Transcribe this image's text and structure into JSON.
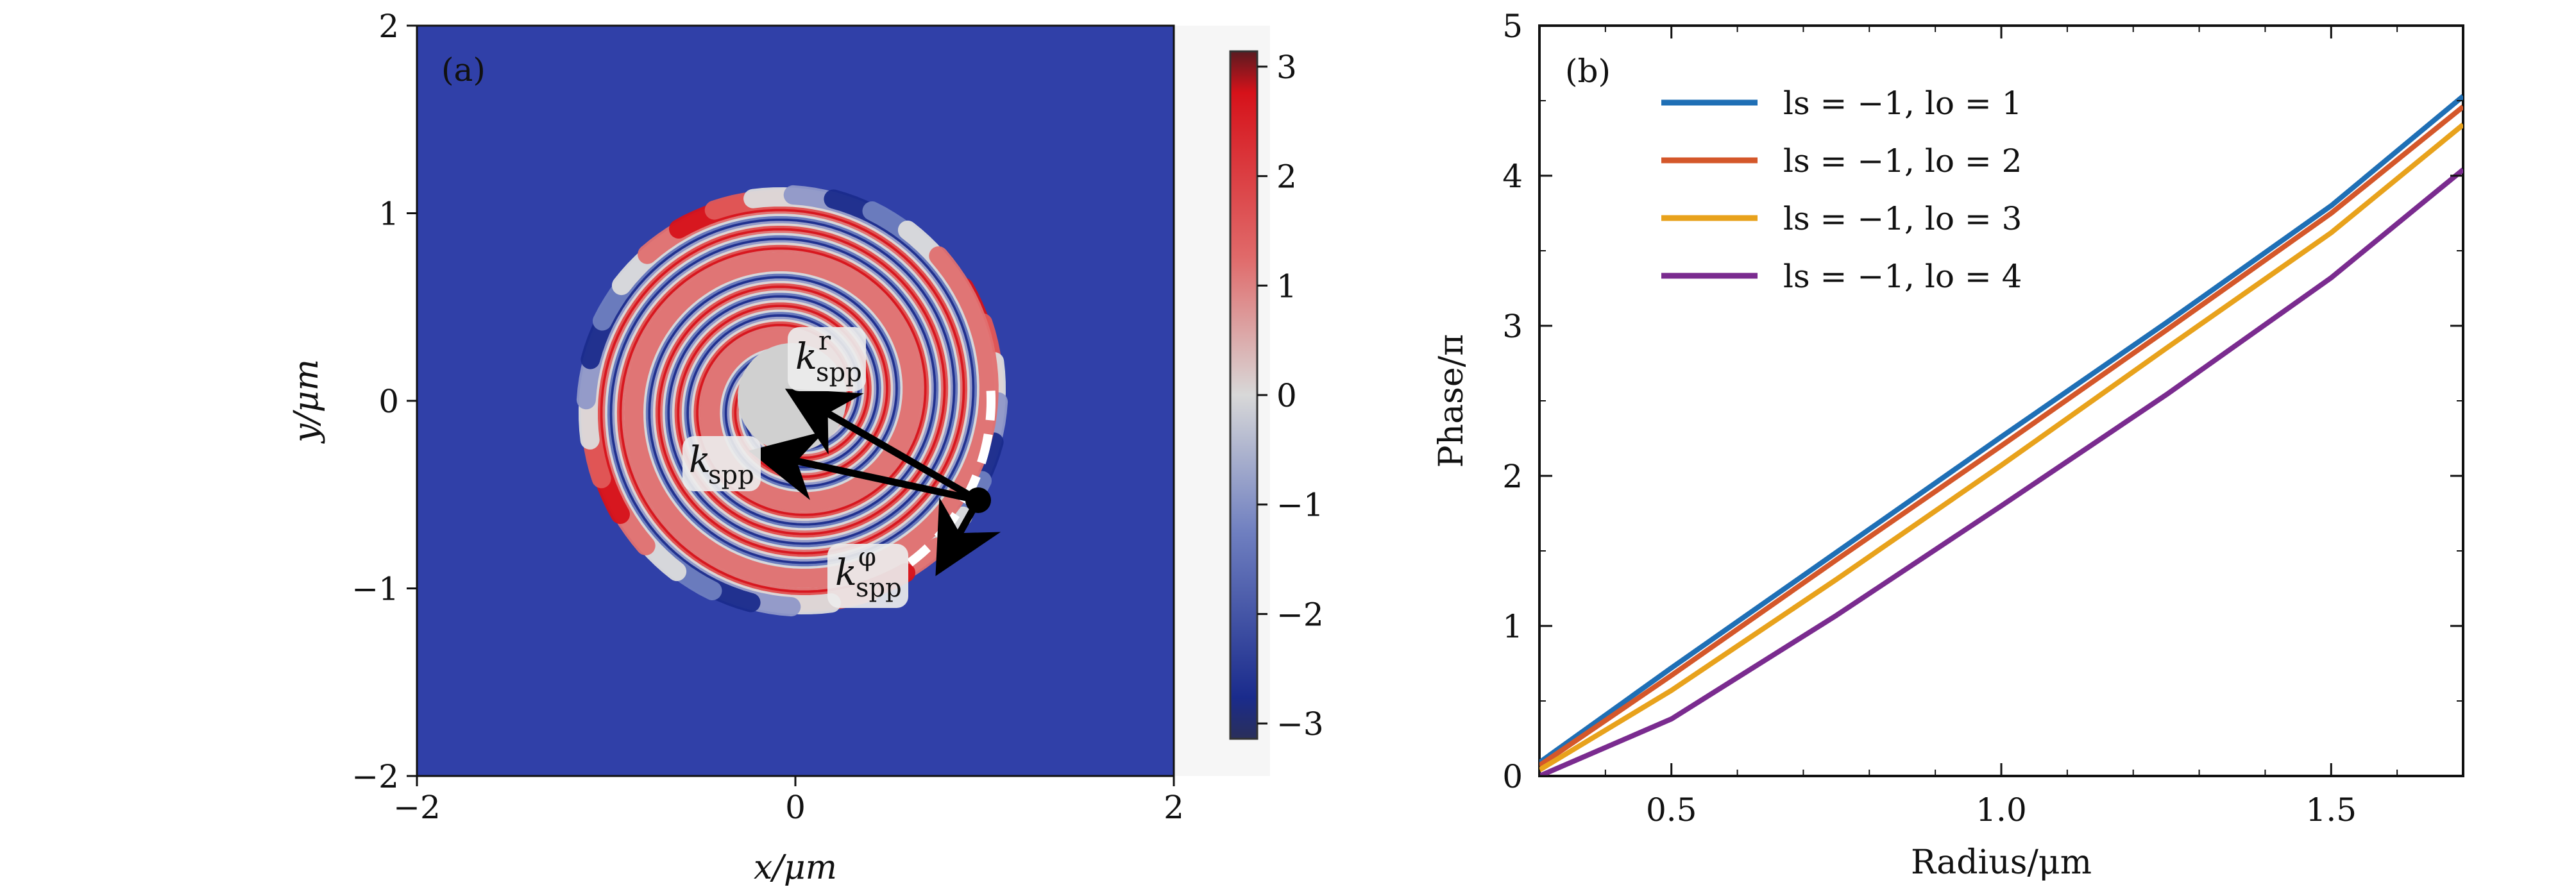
{
  "figure": {
    "panels": {
      "a": {
        "label": "(a)",
        "xlabel": "x/μm",
        "ylabel": "y/μm",
        "xticks": [
          "−2",
          "0",
          "2"
        ],
        "yticks": [
          "2",
          "1",
          "0",
          "−1",
          "−2"
        ],
        "colorbar_ticks": [
          "3",
          "2",
          "1",
          "0",
          "−1",
          "−2",
          "−3"
        ],
        "annotations": {
          "k_r": {
            "base": "k",
            "sub": "spp",
            "sup": "r"
          },
          "k_spp": {
            "base": "k",
            "sub": "spp"
          },
          "k_phi": {
            "base": "k",
            "sub": "spp",
            "sup": "φ"
          }
        }
      },
      "b": {
        "label": "(b)",
        "xlabel": "Radius/μm",
        "ylabel": "Phase/π",
        "xticks": [
          "0.5",
          "1.0",
          "1.5"
        ],
        "yticks": [
          "5",
          "4",
          "3",
          "2",
          "1",
          "0"
        ]
      }
    }
  },
  "chart_data": [
    {
      "type": "heatmap",
      "title": "(a)",
      "xlabel": "x/μm",
      "ylabel": "y/μm",
      "xlim": [
        -2,
        2
      ],
      "ylim": [
        -2,
        2
      ],
      "colorbar": {
        "min": -3.14,
        "max": 3.14,
        "ticks": [
          3,
          2,
          1,
          0,
          -1,
          -2,
          -3
        ],
        "colors": [
          "#1a2b8c",
          "#dcdcdc",
          "#d6121a"
        ]
      },
      "description_values": {
        "pattern": "spiral phase",
        "arms": 4,
        "point": [
          1.0,
          -0.55
        ]
      }
    },
    {
      "type": "line",
      "title": "(b)",
      "xlabel": "Radius/μm",
      "ylabel": "Phase/π",
      "xlim": [
        0.3,
        1.7
      ],
      "ylim": [
        0,
        5
      ],
      "legend_position": "top-left",
      "series": [
        {
          "name": "ls = −1, lo = 1",
          "color": "#1f6fb5",
          "x": [
            0.3,
            0.5,
            0.75,
            1.0,
            1.25,
            1.5,
            1.7
          ],
          "y": [
            0.09,
            0.72,
            1.49,
            2.26,
            3.02,
            3.8,
            4.53
          ]
        },
        {
          "name": "ls = −1, lo = 2",
          "color": "#d4572a",
          "x": [
            0.3,
            0.5,
            0.75,
            1.0,
            1.25,
            1.5,
            1.7
          ],
          "y": [
            0.07,
            0.67,
            1.44,
            2.2,
            2.97,
            3.75,
            4.46
          ]
        },
        {
          "name": "ls = −1, lo = 3",
          "color": "#e8a21c",
          "x": [
            0.3,
            0.5,
            0.75,
            1.0,
            1.25,
            1.5,
            1.7
          ],
          "y": [
            0.04,
            0.57,
            1.31,
            2.07,
            2.85,
            3.62,
            4.34
          ]
        },
        {
          "name": "ls = −1, lo = 4",
          "color": "#7a2b8f",
          "x": [
            0.3,
            0.5,
            0.75,
            1.0,
            1.25,
            1.5,
            1.7
          ],
          "y": [
            0.0,
            0.38,
            1.07,
            1.8,
            2.54,
            3.32,
            4.04
          ]
        }
      ]
    }
  ]
}
